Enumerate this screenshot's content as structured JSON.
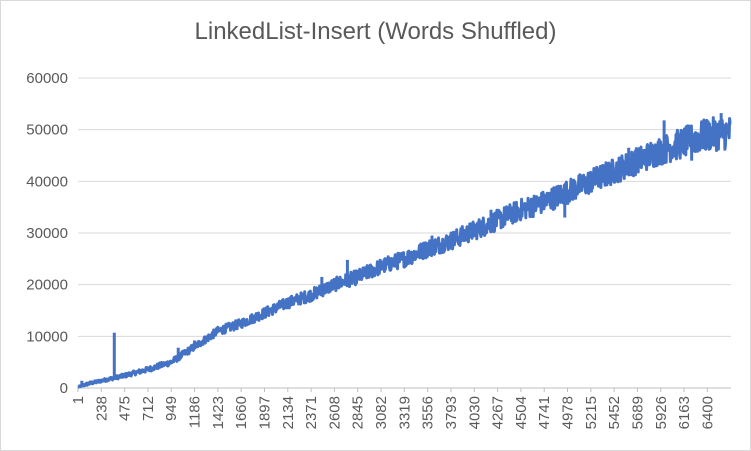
{
  "chart_data": {
    "type": "line",
    "title": "LinkedList-Insert  (Words Shuffled)",
    "xlabel": "",
    "ylabel": "",
    "ylim": [
      0,
      60000
    ],
    "yticks": [
      "0",
      "10000",
      "20000",
      "30000",
      "40000",
      "50000",
      "60000"
    ],
    "xlim": [
      1,
      6640
    ],
    "xticks": [
      "1",
      "238",
      "475",
      "712",
      "949",
      "1186",
      "1423",
      "1660",
      "1897",
      "2134",
      "2371",
      "2608",
      "2845",
      "3082",
      "3319",
      "3556",
      "3793",
      "4030",
      "4267",
      "4504",
      "4741",
      "4978",
      "5215",
      "5452",
      "5689",
      "5926",
      "6163",
      "6400"
    ],
    "grid": true,
    "legend": "none",
    "color": "#4472c4",
    "series": [
      {
        "x": [
          1,
          100,
          238,
          475,
          712,
          949,
          1186,
          1423,
          1660,
          1897,
          2134,
          2371,
          2608,
          2845,
          3082,
          3319,
          3556,
          3793,
          4030,
          4267,
          4504,
          4741,
          4978,
          5215,
          5452,
          5689,
          5926,
          6163,
          6400,
          6640
        ],
        "y": [
          200,
          800,
          1400,
          2400,
          3600,
          5000,
          8000,
          11000,
          12500,
          14500,
          16500,
          18000,
          20000,
          21500,
          23500,
          25000,
          27000,
          28500,
          30500,
          32500,
          34500,
          36000,
          38000,
          40000,
          42000,
          44000,
          46000,
          47500,
          49000,
          49500
        ],
        "spread": [
          100,
          300,
          300,
          400,
          500,
          600,
          700,
          800,
          900,
          1000,
          1100,
          1200,
          1300,
          1400,
          1500,
          1600,
          1700,
          1800,
          1900,
          2000,
          2100,
          2200,
          2300,
          2400,
          2500,
          2600,
          2800,
          3000,
          3200,
          3300
        ]
      }
    ],
    "spikes": [
      {
        "x": 40,
        "y": 1400
      },
      {
        "x": 370,
        "y": 10700
      },
      {
        "x": 1020,
        "y": 7800
      },
      {
        "x": 1186,
        "y": 9200
      },
      {
        "x": 2480,
        "y": 21500
      },
      {
        "x": 2740,
        "y": 24800
      },
      {
        "x": 3600,
        "y": 29500
      },
      {
        "x": 4200,
        "y": 34500
      },
      {
        "x": 5600,
        "y": 46500
      },
      {
        "x": 5960,
        "y": 51800
      },
      {
        "x": 6540,
        "y": 53200
      }
    ],
    "dips": [
      {
        "x": 4950,
        "y": 33000
      },
      {
        "x": 5960,
        "y": 44500
      },
      {
        "x": 6240,
        "y": 44000
      }
    ]
  }
}
